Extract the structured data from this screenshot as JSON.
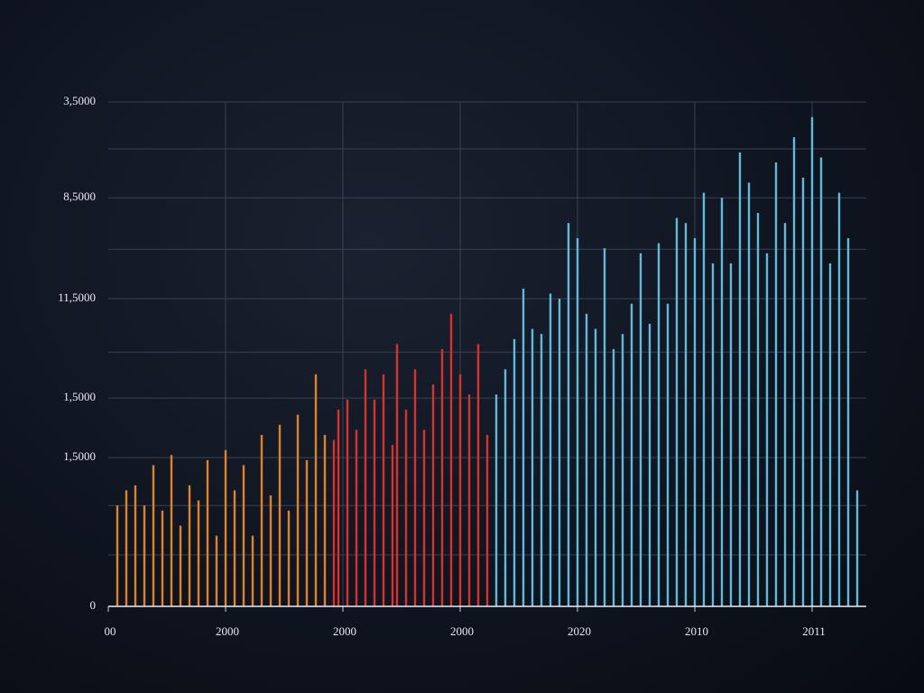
{
  "chart_data": {
    "type": "bar",
    "xlim": [
      0,
      168
    ],
    "xticks": [
      {
        "value": 0,
        "label": "00"
      },
      {
        "value": 26,
        "label": "2000"
      },
      {
        "value": 52,
        "label": "2000"
      },
      {
        "value": 78,
        "label": "2000"
      },
      {
        "value": 104,
        "label": "2020"
      },
      {
        "value": 130,
        "label": "2010"
      },
      {
        "value": 156,
        "label": "2011"
      }
    ],
    "ylim": [
      0,
      100
    ],
    "yticks": [
      {
        "value": 0,
        "label": "0"
      },
      {
        "value": 29.5,
        "label": "1,5000"
      },
      {
        "value": 41.3,
        "label": "1,5000"
      },
      {
        "value": 61,
        "label": "11,5000"
      },
      {
        "value": 81,
        "label": "8,5000"
      },
      {
        "value": 100,
        "label": "3,5000"
      }
    ],
    "minor_yticks": [
      10.2,
      20,
      50.4,
      70.8,
      90.7
    ],
    "grid": true,
    "series": [
      {
        "color": "#e2812c",
        "x": [
          2,
          4,
          6,
          8,
          10,
          12,
          14,
          16,
          18,
          20,
          22,
          24,
          26,
          28,
          30,
          32,
          34,
          36,
          38,
          40,
          42,
          44,
          46,
          48
        ],
        "values": [
          20,
          23,
          24,
          20,
          28,
          19,
          30,
          16,
          24,
          21,
          29,
          14,
          31,
          23,
          28,
          14,
          34,
          22,
          36,
          19,
          38,
          29,
          46,
          34
        ]
      },
      {
        "color": "#d8322f",
        "x": [
          50,
          51,
          53,
          55,
          57,
          59,
          61,
          63,
          64,
          66,
          68,
          70,
          72,
          74,
          76,
          78,
          80,
          82,
          84
        ],
        "values": [
          33,
          39,
          41,
          35,
          47,
          41,
          46,
          32,
          52,
          39,
          47,
          35,
          44,
          51,
          58,
          46,
          42,
          52,
          34
        ]
      },
      {
        "color": "#62b9da",
        "x": [
          86,
          88,
          90,
          92,
          94,
          96,
          98,
          100,
          102,
          104,
          106,
          108,
          110,
          112,
          114,
          116,
          118,
          120,
          122,
          124,
          126,
          128,
          130,
          132,
          134,
          136,
          138,
          140,
          142,
          144,
          146,
          148,
          150,
          152,
          154,
          156,
          158,
          160,
          162,
          164,
          166
        ],
        "values": [
          42,
          47,
          53,
          63,
          55,
          54,
          62,
          61,
          76,
          73,
          58,
          55,
          71,
          51,
          54,
          60,
          70,
          56,
          72,
          60,
          77,
          76,
          73,
          82,
          68,
          81,
          68,
          90,
          84,
          78,
          70,
          88,
          76,
          93,
          85,
          97,
          89,
          68,
          82,
          73,
          23
        ]
      }
    ]
  }
}
